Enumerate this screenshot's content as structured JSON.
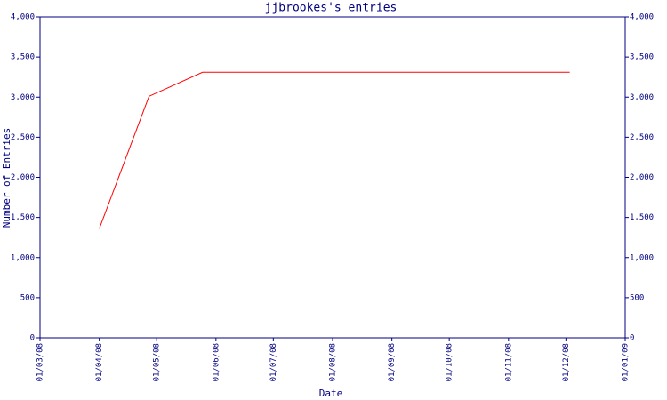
{
  "chart_data": {
    "type": "line",
    "title": "jjbrookes's entries",
    "x_label": "Date",
    "y_label": "Number of Entries",
    "x": [
      "2008-04-01",
      "2008-04-27",
      "2008-05-25",
      "2008-12-03"
    ],
    "series": [
      {
        "name": "jjbrookes",
        "color": "#ff0000",
        "values": [
          1360,
          3010,
          3310,
          3310
        ]
      }
    ],
    "xlim": [
      "2008-03-01",
      "2009-01-01"
    ],
    "xticks": [
      {
        "value": "2008-03-01",
        "label": "01/03/08"
      },
      {
        "value": "2008-04-01",
        "label": "01/04/08"
      },
      {
        "value": "2008-05-01",
        "label": "01/05/08"
      },
      {
        "value": "2008-06-01",
        "label": "01/06/08"
      },
      {
        "value": "2008-07-01",
        "label": "01/07/08"
      },
      {
        "value": "2008-08-01",
        "label": "01/08/08"
      },
      {
        "value": "2008-09-01",
        "label": "01/09/08"
      },
      {
        "value": "2008-10-01",
        "label": "01/10/08"
      },
      {
        "value": "2008-11-01",
        "label": "01/11/08"
      },
      {
        "value": "2008-12-01",
        "label": "01/12/08"
      },
      {
        "value": "2009-01-01",
        "label": "01/01/09"
      }
    ],
    "ylim": [
      0,
      4000
    ],
    "yticks": [
      0,
      500,
      {
        "value": 1000,
        "label": "1,000"
      },
      {
        "value": 1500,
        "label": "1,500"
      },
      {
        "value": 2000,
        "label": "2,000"
      },
      {
        "value": 2500,
        "label": "2,500"
      },
      {
        "value": 3000,
        "label": "3,000"
      },
      {
        "value": 3500,
        "label": "3,500"
      },
      {
        "value": 4000,
        "label": "4,000"
      }
    ],
    "y2lim": [
      0,
      4000
    ],
    "y2ticks": [
      0,
      500,
      {
        "value": 1000,
        "label": "1,000"
      },
      {
        "value": 1500,
        "label": "1,500"
      },
      {
        "value": 2000,
        "label": "2,000"
      },
      {
        "value": 2500,
        "label": "2,500"
      },
      {
        "value": 3000,
        "label": "3,000"
      },
      {
        "value": 3500,
        "label": "3,500"
      },
      {
        "value": 4000,
        "label": "4,000"
      }
    ]
  }
}
